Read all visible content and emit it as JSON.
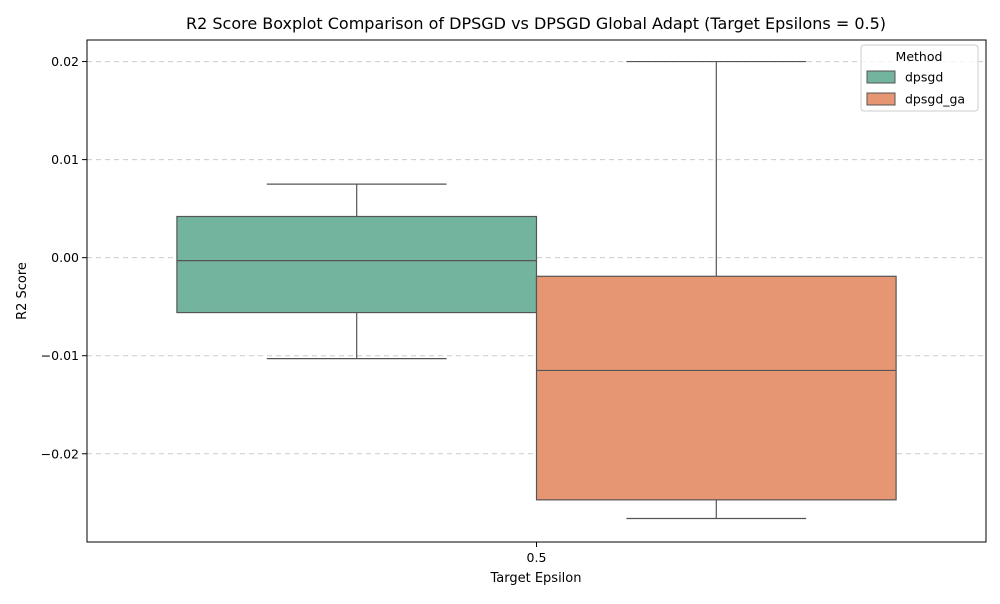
{
  "chart_data": {
    "type": "boxplot",
    "title": "R2 Score Boxplot Comparison of DPSGD vs DPSGD Global Adapt (Target Epsilons = 0.5)",
    "xlabel": "Target Epsilon",
    "ylabel": "R2 Score",
    "categories": [
      "0.5"
    ],
    "ylim": [
      -0.029,
      0.0222
    ],
    "yticks": [
      0.02,
      0.01,
      0.0,
      -0.01,
      -0.02
    ],
    "ytick_labels": [
      "0.02",
      "0.01",
      "0.00",
      "−0.01",
      "−0.02"
    ],
    "grid": true,
    "legend": {
      "title": "Method",
      "position": "top-right"
    },
    "series": [
      {
        "name": "dpsgd",
        "color": "#73b49f",
        "min": -0.0103,
        "q1": -0.0056,
        "median": -0.0003,
        "q3": 0.0042,
        "max": 0.0075
      },
      {
        "name": "dpsgd_ga",
        "color": "#e79674",
        "min": -0.0266,
        "q1": -0.0247,
        "median": -0.0115,
        "q3": -0.0019,
        "max": 0.02
      }
    ]
  }
}
